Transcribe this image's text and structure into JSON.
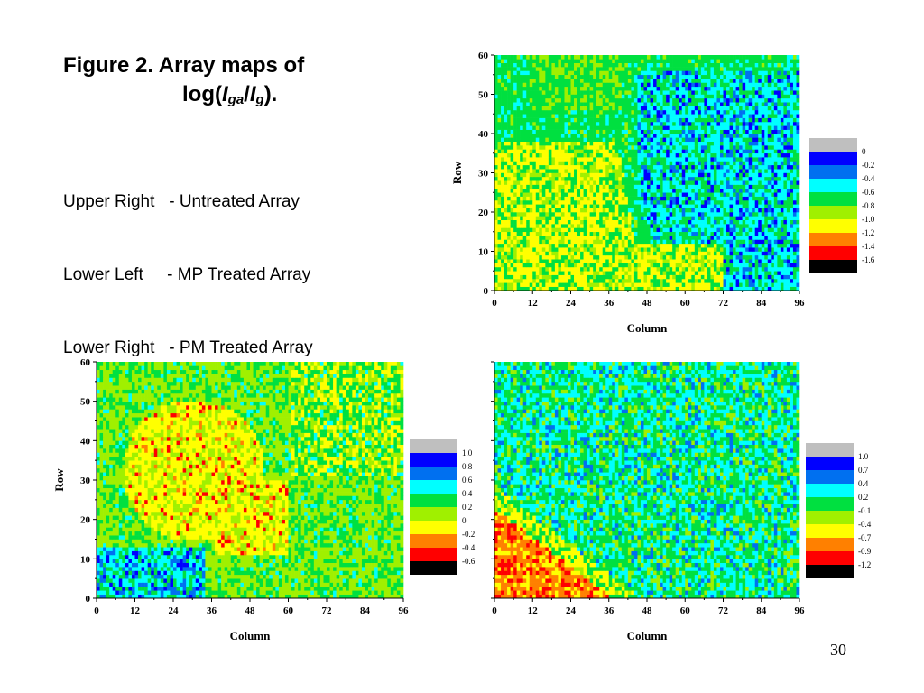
{
  "figure": {
    "title_prefix": "Figure 2.  Array maps of",
    "title_log_open": "log(",
    "title_I1": "I",
    "title_sub1": "ga",
    "title_slash": "/",
    "title_I2": "I",
    "title_sub2": "g",
    "title_close": ").",
    "lines": [
      "Upper Right   - Untreated Array",
      "Lower Left     - MP Treated Array",
      "Lower Right   - PM Treated Array"
    ]
  },
  "page_number": "30",
  "colors": {
    "gray": "#bfbfbf",
    "blue": "#0000ff",
    "mid_blue": "#0070f0",
    "cyan": "#00ffff",
    "green": "#00e040",
    "yellow_green": "#a0f000",
    "yellow": "#ffff00",
    "orange": "#ff8000",
    "red": "#ff0000",
    "black": "#000000"
  },
  "chart_data": [
    {
      "id": "upper-right",
      "type": "heatmap",
      "title": "",
      "xlabel": "Column",
      "ylabel": "Row",
      "xlim": [
        0,
        96
      ],
      "ylim": [
        0,
        60
      ],
      "xticks": [
        "0",
        "12",
        "24",
        "36",
        "48",
        "60",
        "72",
        "84",
        "96"
      ],
      "yticks": [
        "0",
        "10",
        "20",
        "30",
        "40",
        "50",
        "60"
      ],
      "colorscale_labels": [
        "0",
        "-0.2",
        "-0.4",
        "-0.6",
        "-0.8",
        "-1.0",
        "-1.2",
        "-1.4",
        "-1.6"
      ],
      "pattern": "blue-cyan upper right region, yellow band lower left, green elsewhere"
    },
    {
      "id": "lower-left",
      "type": "heatmap",
      "title": "",
      "xlabel": "Column",
      "ylabel": "Row",
      "xlim": [
        0,
        96
      ],
      "ylim": [
        0,
        60
      ],
      "xticks": [
        "0",
        "12",
        "24",
        "36",
        "48",
        "60",
        "72",
        "84",
        "96"
      ],
      "yticks": [
        "0",
        "10",
        "20",
        "30",
        "40",
        "50",
        "60"
      ],
      "colorscale_labels": [
        "1.0",
        "0.8",
        "0.6",
        "0.4",
        "0.2",
        "0",
        "-0.2",
        "-0.4",
        "-0.6"
      ],
      "pattern": "yellow centre with red spots, cyan-blue lower left, green elsewhere"
    },
    {
      "id": "lower-right",
      "type": "heatmap",
      "title": "",
      "xlabel": "Column",
      "ylabel": "",
      "xlim": [
        0,
        96
      ],
      "ylim": [
        0,
        60
      ],
      "xticks": [
        "0",
        "12",
        "24",
        "36",
        "48",
        "60",
        "72",
        "84",
        "96"
      ],
      "yticks": [],
      "colorscale_labels": [
        "1.0",
        "0.7",
        "0.4",
        "0.2",
        "-0.1",
        "-0.4",
        "-0.7",
        "-0.9",
        "-1.2"
      ],
      "pattern": "orange-red lower left corner, cyan-green elsewhere"
    }
  ]
}
